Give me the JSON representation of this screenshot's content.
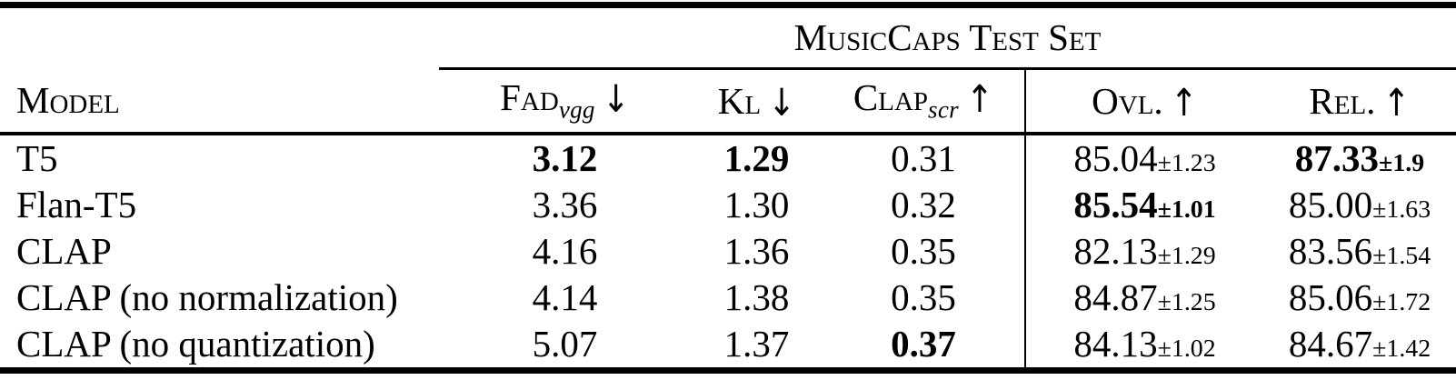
{
  "table": {
    "group_header": {
      "title": "MusicCaps Test Set"
    },
    "columns": {
      "model": {
        "label": "Model"
      },
      "fad": {
        "name": "Fad",
        "sub": "vgg",
        "arrow": "↓"
      },
      "kl": {
        "name": "Kl",
        "arrow": "↓"
      },
      "clap": {
        "name": "Clap",
        "sub": "scr",
        "arrow": "↑"
      },
      "ovl": {
        "name": "Ovl.",
        "arrow": "↑"
      },
      "rel": {
        "name": "Rel.",
        "arrow": "↑"
      }
    },
    "rows": [
      {
        "model": "T5",
        "fad": "3.12",
        "fad_bold": true,
        "kl": "1.29",
        "kl_bold": true,
        "clap": "0.31",
        "clap_bold": false,
        "ovl": "85.04",
        "ovl_pm": "±1.23",
        "ovl_bold": false,
        "rel": "87.33",
        "rel_pm": "±1.9",
        "rel_bold": true
      },
      {
        "model": "Flan-T5",
        "fad": "3.36",
        "fad_bold": false,
        "kl": "1.30",
        "kl_bold": false,
        "clap": "0.32",
        "clap_bold": false,
        "ovl": "85.54",
        "ovl_pm": "±1.01",
        "ovl_bold": true,
        "rel": "85.00",
        "rel_pm": "±1.63",
        "rel_bold": false
      },
      {
        "model": "CLAP",
        "fad": "4.16",
        "fad_bold": false,
        "kl": "1.36",
        "kl_bold": false,
        "clap": "0.35",
        "clap_bold": false,
        "ovl": "82.13",
        "ovl_pm": "±1.29",
        "ovl_bold": false,
        "rel": "83.56",
        "rel_pm": "±1.54",
        "rel_bold": false
      },
      {
        "model": "CLAP (no normalization)",
        "fad": "4.14",
        "fad_bold": false,
        "kl": "1.38",
        "kl_bold": false,
        "clap": "0.35",
        "clap_bold": false,
        "ovl": "84.87",
        "ovl_pm": "±1.25",
        "ovl_bold": false,
        "rel": "85.06",
        "rel_pm": "±1.72",
        "rel_bold": false
      },
      {
        "model": "CLAP (no quantization)",
        "fad": "5.07",
        "fad_bold": false,
        "kl": "1.37",
        "kl_bold": false,
        "clap": "0.37",
        "clap_bold": true,
        "ovl": "84.13",
        "ovl_pm": "±1.02",
        "ovl_bold": false,
        "rel": "84.67",
        "rel_pm": "±1.42",
        "rel_bold": false
      }
    ],
    "colors": {
      "text": "#000000",
      "background": "#ffffff",
      "rule": "#000000"
    }
  }
}
